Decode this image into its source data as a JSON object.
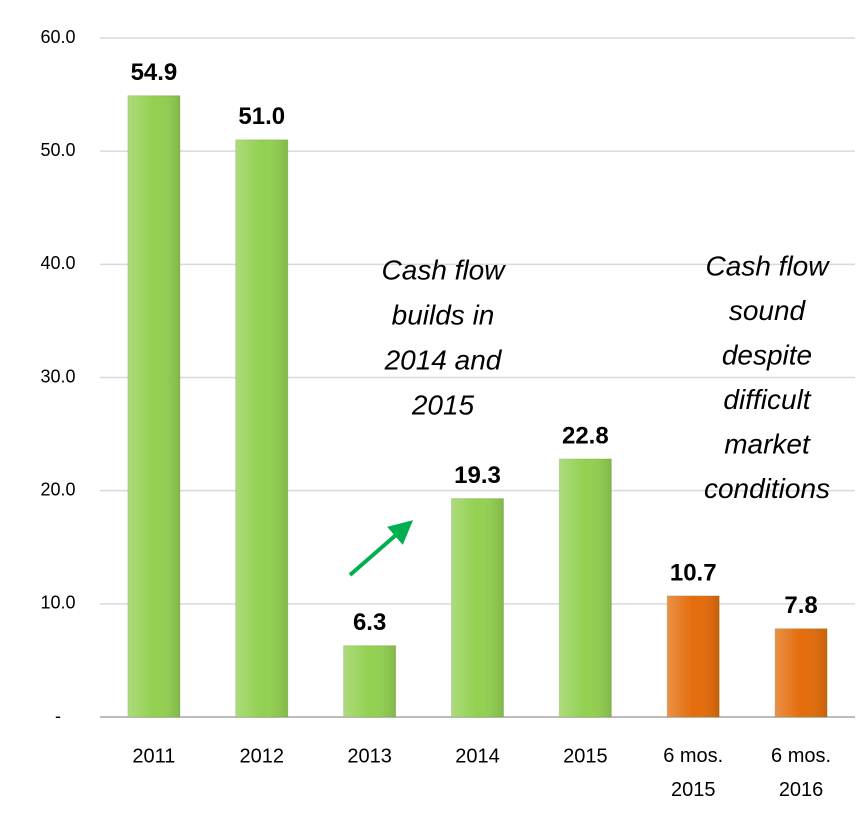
{
  "chart_data": {
    "type": "bar",
    "categories": [
      "2011",
      "2012",
      "2013",
      "2014",
      "2015",
      "6 mos. 2015",
      "6 mos. 2016"
    ],
    "values": [
      54.9,
      51.0,
      6.3,
      19.3,
      22.8,
      10.7,
      7.8
    ],
    "value_labels": [
      "54.9",
      "51.0",
      "6.3",
      "19.3",
      "22.8",
      "10.7",
      "7.8"
    ],
    "colors": [
      "#92d050",
      "#92d050",
      "#92d050",
      "#92d050",
      "#92d050",
      "#e46c0a",
      "#e46c0a"
    ],
    "ylim": [
      0,
      60
    ],
    "yticks": [
      {
        "value": 0,
        "label": "-"
      },
      {
        "value": 10,
        "label": "10.0"
      },
      {
        "value": 20,
        "label": "20.0"
      },
      {
        "value": 30,
        "label": "30.0"
      },
      {
        "value": 40,
        "label": "40.0"
      },
      {
        "value": 50,
        "label": "50.0"
      },
      {
        "value": 60,
        "label": "60.0"
      }
    ],
    "grid": true,
    "annotations": [
      {
        "lines": [
          "Cash flow",
          "builds in",
          "2014 and",
          "2015"
        ]
      },
      {
        "lines": [
          "Cash flow",
          "sound",
          "despite",
          "difficult",
          "market",
          "conditions"
        ]
      }
    ]
  }
}
